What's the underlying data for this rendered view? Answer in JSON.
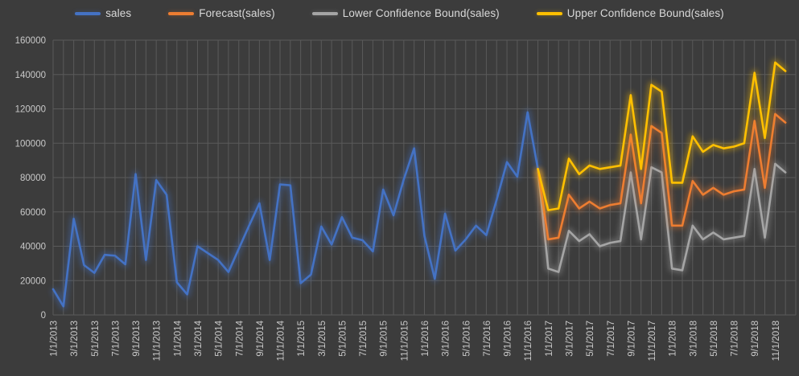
{
  "chart_data": {
    "type": "line",
    "title": "",
    "xlabel": "",
    "ylabel": "",
    "legend_position": "top",
    "grid": true,
    "background_color": "#3c3c3c",
    "gridline_color": "#5a5a5a",
    "axis_label_color": "#c9c9c9",
    "y_axis": {
      "min": 0,
      "max": 160000,
      "step": 20000,
      "tick_labels": [
        "0",
        "20000",
        "40000",
        "60000",
        "80000",
        "100000",
        "120000",
        "140000",
        "160000"
      ]
    },
    "x_label_every": 2,
    "categories": [
      "1/1/2013",
      "2/1/2013",
      "3/1/2013",
      "4/1/2013",
      "5/1/2013",
      "6/1/2013",
      "7/1/2013",
      "8/1/2013",
      "9/1/2013",
      "10/1/2013",
      "11/1/2013",
      "12/1/2013",
      "1/1/2014",
      "2/1/2014",
      "3/1/2014",
      "4/1/2014",
      "5/1/2014",
      "6/1/2014",
      "7/1/2014",
      "8/1/2014",
      "9/1/2014",
      "10/1/2014",
      "11/1/2014",
      "12/1/2014",
      "1/1/2015",
      "2/1/2015",
      "3/1/2015",
      "4/1/2015",
      "5/1/2015",
      "6/1/2015",
      "7/1/2015",
      "8/1/2015",
      "9/1/2015",
      "10/1/2015",
      "11/1/2015",
      "12/1/2015",
      "1/1/2016",
      "2/1/2016",
      "3/1/2016",
      "4/1/2016",
      "5/1/2016",
      "6/1/2016",
      "7/1/2016",
      "8/1/2016",
      "9/1/2016",
      "10/1/2016",
      "11/1/2016",
      "12/1/2016",
      "1/1/2017",
      "2/1/2017",
      "3/1/2017",
      "4/1/2017",
      "5/1/2017",
      "6/1/2017",
      "7/1/2017",
      "8/1/2017",
      "9/1/2017",
      "10/1/2017",
      "11/1/2017",
      "12/1/2017",
      "1/1/2018",
      "2/1/2018",
      "3/1/2018",
      "4/1/2018",
      "5/1/2018",
      "6/1/2018",
      "7/1/2018",
      "8/1/2018",
      "9/1/2018",
      "10/1/2018",
      "11/1/2018",
      "12/1/2018"
    ],
    "draw_order": [
      0,
      2,
      1,
      3
    ],
    "series": [
      {
        "name": "sales",
        "color": "#4472c4",
        "values": [
          15000,
          5000,
          56000,
          29000,
          24500,
          35000,
          34500,
          29500,
          82000,
          32000,
          78500,
          70000,
          19000,
          12000,
          40000,
          36000,
          32000,
          25000,
          38500,
          52000,
          65000,
          32000,
          76000,
          75500,
          18500,
          23500,
          51500,
          41000,
          57000,
          45000,
          43500,
          37000,
          73000,
          58000,
          79000,
          97000,
          46000,
          21000,
          59000,
          37500,
          44000,
          52000,
          46500,
          67000,
          89000,
          80500,
          118000,
          85000,
          null,
          null,
          null,
          null,
          null,
          null,
          null,
          null,
          null,
          null,
          null,
          null,
          null,
          null,
          null,
          null,
          null,
          null,
          null,
          null,
          null,
          null,
          null,
          null
        ]
      },
      {
        "name": "Forecast(sales)",
        "color": "#ed7d31",
        "values": [
          null,
          null,
          null,
          null,
          null,
          null,
          null,
          null,
          null,
          null,
          null,
          null,
          null,
          null,
          null,
          null,
          null,
          null,
          null,
          null,
          null,
          null,
          null,
          null,
          null,
          null,
          null,
          null,
          null,
          null,
          null,
          null,
          null,
          null,
          null,
          null,
          null,
          null,
          null,
          null,
          null,
          null,
          null,
          null,
          null,
          null,
          null,
          85000,
          44000,
          45000,
          70000,
          62000,
          66000,
          62000,
          64000,
          65000,
          105000,
          65000,
          110000,
          106000,
          52000,
          52000,
          78000,
          70000,
          74000,
          70000,
          72000,
          73000,
          113000,
          74000,
          117000,
          112000
        ]
      },
      {
        "name": "Lower Confidence Bound(sales)",
        "color": "#a5a5a5",
        "values": [
          null,
          null,
          null,
          null,
          null,
          null,
          null,
          null,
          null,
          null,
          null,
          null,
          null,
          null,
          null,
          null,
          null,
          null,
          null,
          null,
          null,
          null,
          null,
          null,
          null,
          null,
          null,
          null,
          null,
          null,
          null,
          null,
          null,
          null,
          null,
          null,
          null,
          null,
          null,
          null,
          null,
          null,
          null,
          null,
          null,
          null,
          null,
          85000,
          27000,
          25000,
          49000,
          43000,
          47000,
          40000,
          42000,
          43000,
          83000,
          44000,
          86000,
          83000,
          27000,
          26000,
          52000,
          44000,
          48000,
          44000,
          45000,
          46000,
          85000,
          45000,
          88000,
          83000
        ]
      },
      {
        "name": "Upper Confidence Bound(sales)",
        "color": "#ffc000",
        "values": [
          null,
          null,
          null,
          null,
          null,
          null,
          null,
          null,
          null,
          null,
          null,
          null,
          null,
          null,
          null,
          null,
          null,
          null,
          null,
          null,
          null,
          null,
          null,
          null,
          null,
          null,
          null,
          null,
          null,
          null,
          null,
          null,
          null,
          null,
          null,
          null,
          null,
          null,
          null,
          null,
          null,
          null,
          null,
          null,
          null,
          null,
          null,
          85000,
          61000,
          62000,
          91000,
          82000,
          87000,
          85000,
          86000,
          87000,
          128000,
          85000,
          134000,
          130000,
          77000,
          77000,
          104000,
          95000,
          99000,
          97000,
          98000,
          100000,
          141000,
          103000,
          147000,
          142000
        ]
      }
    ]
  }
}
